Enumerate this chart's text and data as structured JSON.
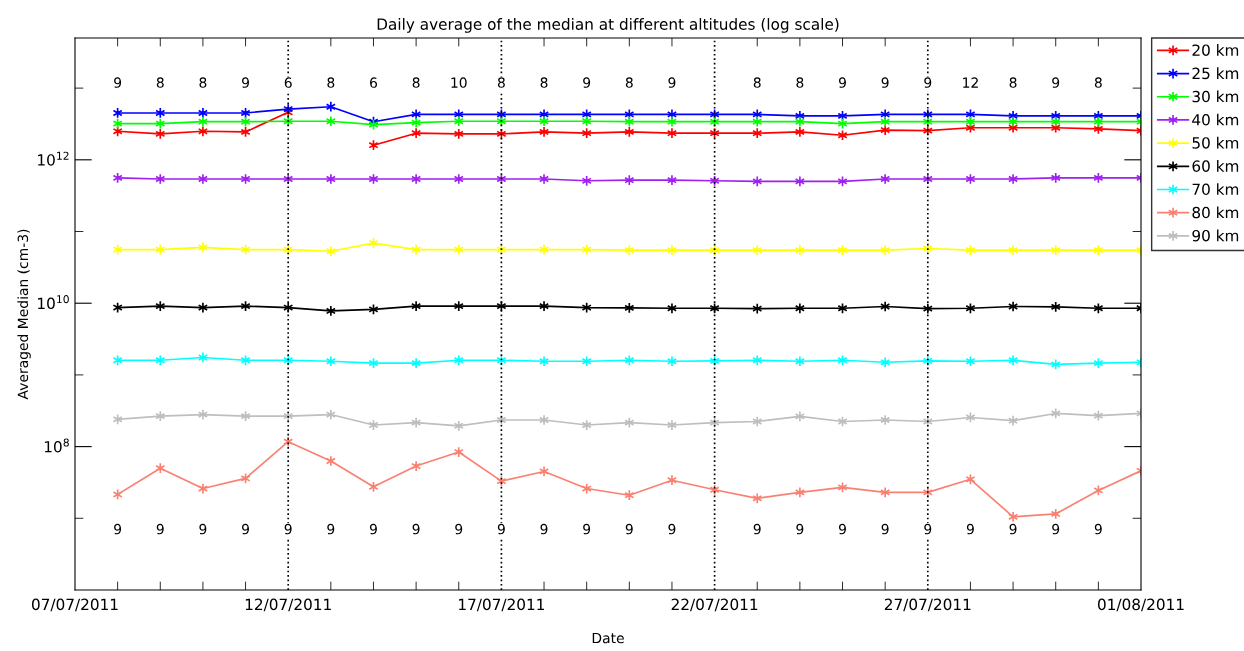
{
  "chart_data": {
    "type": "line",
    "title": "Daily average of the median at different altitudes (log scale)",
    "xlabel": "Date",
    "ylabel": "Averaged Median (cm-3)",
    "x": [
      "2011-07-08",
      "2011-07-09",
      "2011-07-10",
      "2011-07-11",
      "2011-07-12",
      "2011-07-13",
      "2011-07-14",
      "2011-07-15",
      "2011-07-16",
      "2011-07-17",
      "2011-07-18",
      "2011-07-19",
      "2011-07-20",
      "2011-07-21",
      "2011-07-22",
      "2011-07-23",
      "2011-07-24",
      "2011-07-25",
      "2011-07-26",
      "2011-07-27",
      "2011-07-28",
      "2011-07-29",
      "2011-07-30",
      "2011-07-31",
      "2011-08-01"
    ],
    "series": [
      {
        "name": "20 km",
        "color": "#ff0000",
        "values": [
          2500000000000.0,
          2300000000000.0,
          2500000000000.0,
          2450000000000.0,
          4600000000000.0,
          null,
          1600000000000.0,
          2350000000000.0,
          2300000000000.0,
          2300000000000.0,
          2450000000000.0,
          2350000000000.0,
          2450000000000.0,
          2350000000000.0,
          2350000000000.0,
          2350000000000.0,
          2450000000000.0,
          2200000000000.0,
          2600000000000.0,
          2550000000000.0,
          2800000000000.0,
          2800000000000.0,
          2800000000000.0,
          2700000000000.0,
          2550000000000.0
        ]
      },
      {
        "name": "25 km",
        "color": "#0000ff",
        "values": [
          4500000000000.0,
          4500000000000.0,
          4500000000000.0,
          4500000000000.0,
          5100000000000.0,
          5500000000000.0,
          3400000000000.0,
          4300000000000.0,
          4300000000000.0,
          4300000000000.0,
          4300000000000.0,
          4300000000000.0,
          4300000000000.0,
          4300000000000.0,
          4300000000000.0,
          4300000000000.0,
          4100000000000.0,
          4100000000000.0,
          4300000000000.0,
          4300000000000.0,
          4300000000000.0,
          4100000000000.0,
          4100000000000.0,
          4100000000000.0,
          4100000000000.0
        ]
      },
      {
        "name": "30 km",
        "color": "#00ff00",
        "values": [
          3200000000000.0,
          3200000000000.0,
          3400000000000.0,
          3400000000000.0,
          3450000000000.0,
          3450000000000.0,
          3100000000000.0,
          3300000000000.0,
          3450000000000.0,
          3450000000000.0,
          3450000000000.0,
          3450000000000.0,
          3400000000000.0,
          3400000000000.0,
          3400000000000.0,
          3400000000000.0,
          3400000000000.0,
          3200000000000.0,
          3400000000000.0,
          3400000000000.0,
          3400000000000.0,
          3400000000000.0,
          3400000000000.0,
          3400000000000.0,
          3400000000000.0
        ]
      },
      {
        "name": "40 km",
        "color": "#a020f0",
        "values": [
          560000000000.0,
          540000000000.0,
          540000000000.0,
          540000000000.0,
          540000000000.0,
          540000000000.0,
          540000000000.0,
          540000000000.0,
          540000000000.0,
          540000000000.0,
          540000000000.0,
          510000000000.0,
          520000000000.0,
          520000000000.0,
          510000000000.0,
          500000000000.0,
          500000000000.0,
          500000000000.0,
          540000000000.0,
          540000000000.0,
          540000000000.0,
          540000000000.0,
          560000000000.0,
          560000000000.0,
          560000000000.0
        ]
      },
      {
        "name": "50 km",
        "color": "#ffff00",
        "values": [
          56000000000.0,
          56000000000.0,
          60000000000.0,
          56000000000.0,
          56000000000.0,
          53000000000.0,
          69000000000.0,
          56000000000.0,
          56000000000.0,
          56000000000.0,
          56000000000.0,
          56000000000.0,
          55000000000.0,
          55000000000.0,
          55000000000.0,
          55000000000.0,
          55000000000.0,
          55000000000.0,
          55000000000.0,
          58000000000.0,
          55000000000.0,
          55000000000.0,
          55000000000.0,
          55000000000.0,
          55000000000.0
        ]
      },
      {
        "name": "60 km",
        "color": "#000000",
        "values": [
          8700000000.0,
          9100000000.0,
          8700000000.0,
          9100000000.0,
          8700000000.0,
          7800000000.0,
          8200000000.0,
          9100000000.0,
          9100000000.0,
          9100000000.0,
          9100000000.0,
          8700000000.0,
          8600000000.0,
          8500000000.0,
          8500000000.0,
          8400000000.0,
          8500000000.0,
          8500000000.0,
          9000000000.0,
          8400000000.0,
          8500000000.0,
          9000000000.0,
          8900000000.0,
          8500000000.0,
          8500000000.0
        ]
      },
      {
        "name": "70 km",
        "color": "#00ffff",
        "values": [
          1600000000.0,
          1600000000.0,
          1750000000.0,
          1600000000.0,
          1600000000.0,
          1550000000.0,
          1460000000.0,
          1460000000.0,
          1600000000.0,
          1600000000.0,
          1550000000.0,
          1550000000.0,
          1600000000.0,
          1550000000.0,
          1570000000.0,
          1600000000.0,
          1550000000.0,
          1600000000.0,
          1500000000.0,
          1570000000.0,
          1550000000.0,
          1600000000.0,
          1400000000.0,
          1460000000.0,
          1500000000.0
        ]
      },
      {
        "name": "80 km",
        "color": "#fa8072",
        "values": [
          21500000.0,
          50000000.0,
          26000000.0,
          36000000.0,
          117000000.0,
          63000000.0,
          27500000.0,
          53500000.0,
          84000000.0,
          33000000.0,
          45000000.0,
          26000000.0,
          21000000.0,
          34000000.0,
          25000000.0,
          19000000.0,
          23000000.0,
          27000000.0,
          23000000.0,
          23000000.0,
          35000000.0,
          10500000.0,
          11500000.0,
          24500000.0,
          46000000.0
        ]
      },
      {
        "name": "90 km",
        "color": "#bebebe",
        "values": [
          240000000.0,
          266000000.0,
          280000000.0,
          266000000.0,
          266000000.0,
          280000000.0,
          200000000.0,
          216000000.0,
          195000000.0,
          235000000.0,
          235000000.0,
          200000000.0,
          216000000.0,
          200000000.0,
          216000000.0,
          224000000.0,
          264000000.0,
          224000000.0,
          235000000.0,
          224000000.0,
          255000000.0,
          230000000.0,
          290000000.0,
          270000000.0,
          290000000.0
        ]
      }
    ],
    "xlim": [
      "2011-07-07",
      "2011-08-01"
    ],
    "xticks": [
      {
        "value": "2011-07-07",
        "label": "07/07/2011"
      },
      {
        "value": "2011-07-12",
        "label": "12/07/2011"
      },
      {
        "value": "2011-07-17",
        "label": "17/07/2011"
      },
      {
        "value": "2011-07-22",
        "label": "22/07/2011"
      },
      {
        "value": "2011-07-27",
        "label": "27/07/2011"
      },
      {
        "value": "2011-08-01",
        "label": "01/08/2011"
      }
    ],
    "ylim": [
      1000000.0,
      50000000000000.0
    ],
    "log": true,
    "yticks": [
      {
        "value": 10000000.0,
        "label": null
      },
      {
        "value": 100000000.0,
        "label": "10$^{8}$"
      },
      {
        "value": 1000000000.0,
        "label": null
      },
      {
        "value": 10000000000.0,
        "label": "10$^{10}$"
      },
      {
        "value": 100000000000.0,
        "label": null
      },
      {
        "value": 1000000000000.0,
        "label": "10$^{12}$"
      },
      {
        "value": 10000000000000.0,
        "label": null
      }
    ],
    "ref_lines": [
      {
        "axis": "x",
        "value": "2011-07-12",
        "color": "#000000",
        "line_style": "dotted"
      },
      {
        "axis": "x",
        "value": "2011-07-17",
        "color": "#000000",
        "line_style": "dotted"
      },
      {
        "axis": "x",
        "value": "2011-07-22",
        "color": "#000000",
        "line_style": "dotted"
      },
      {
        "axis": "x",
        "value": "2011-07-27",
        "color": "#000000",
        "line_style": "dotted"
      }
    ],
    "annotations": [
      "9",
      "8",
      "8",
      "9",
      "6",
      "8",
      "6",
      "8",
      "10",
      "8",
      "8",
      "9",
      "8",
      "9",
      "8",
      "8",
      "9",
      "9",
      "9",
      "12",
      "8",
      "9",
      "8",
      "9",
      "9",
      "9",
      "9",
      "9",
      "9",
      "9",
      "9",
      "9",
      "9",
      "9",
      "9",
      "9",
      "9",
      "9",
      "9",
      "9",
      "9",
      "9",
      "9",
      "9",
      "9",
      "9"
    ],
    "marker": "cross",
    "line_style": "solid",
    "grid": false,
    "legend": "top right"
  }
}
